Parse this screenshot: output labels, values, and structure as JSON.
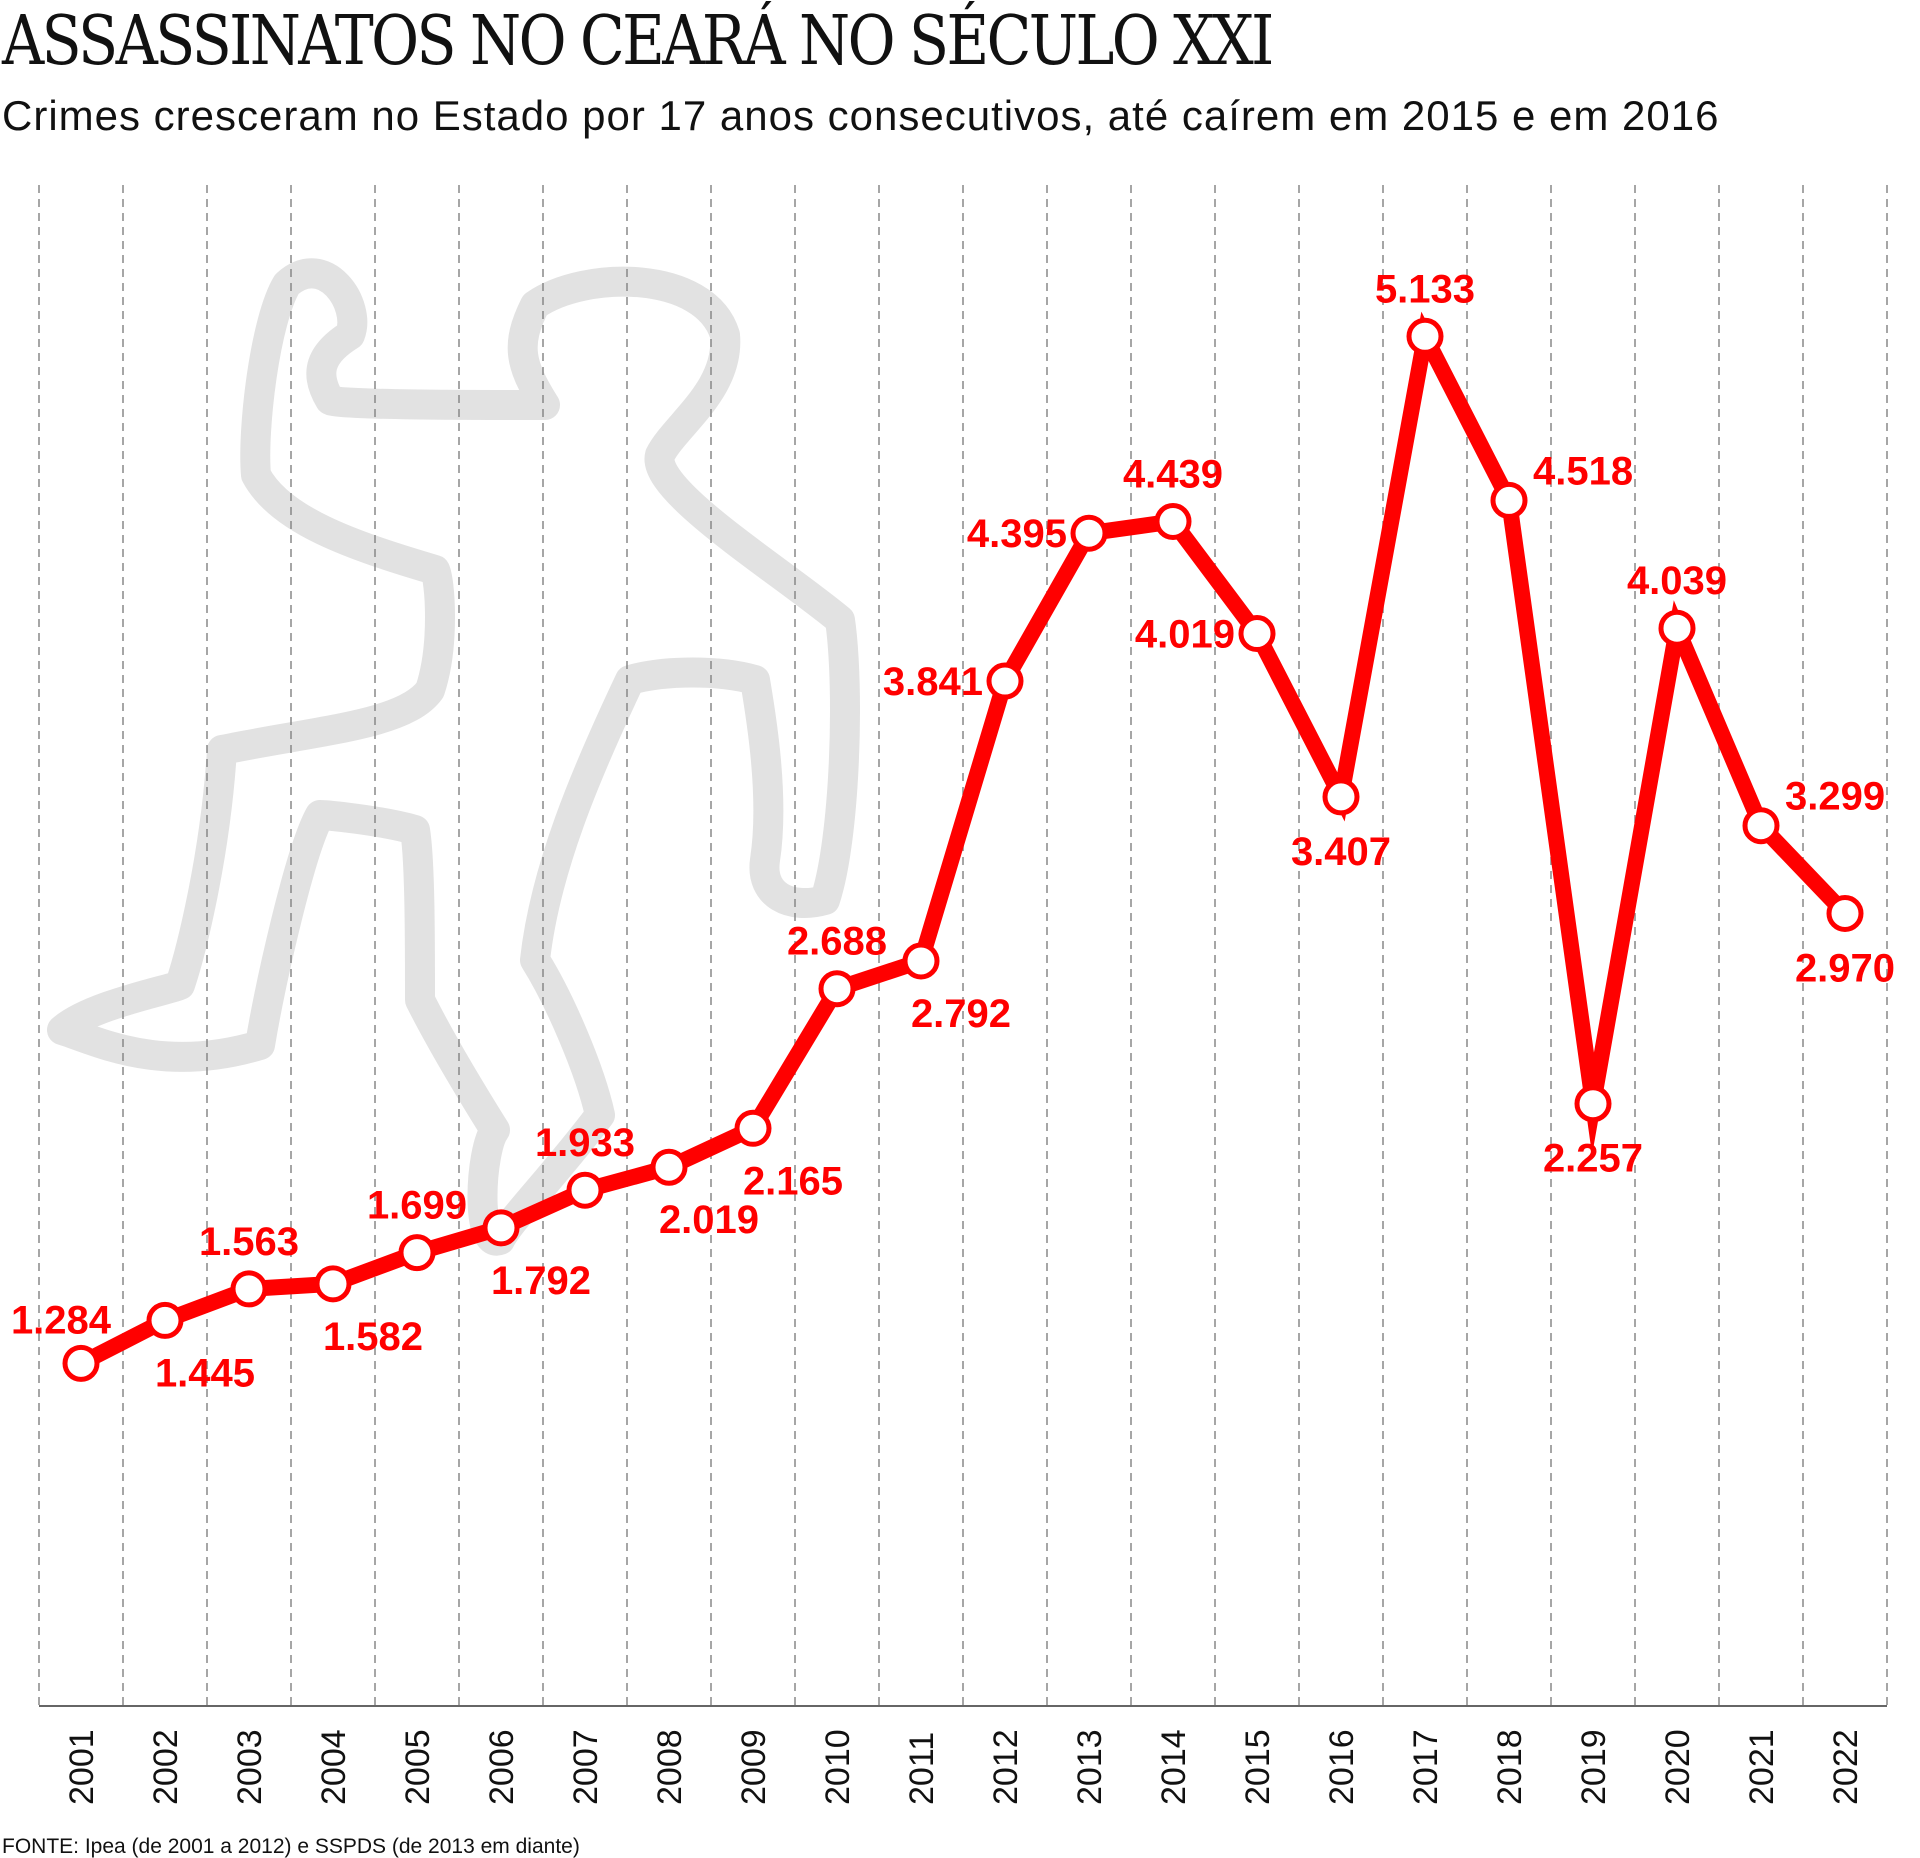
{
  "chart_data": {
    "type": "line",
    "title": "ASSASSINATOS NO CEARÁ NO SÉCULO XXI",
    "subtitle": "Crimes cresceram no Estado por 17 anos consecutivos, até caírem em 2015 e em 2016",
    "source": "FONTE: Ipea (de 2001 a 2012) e SSPDS (de 2013 em diante)",
    "xlabel": "",
    "ylabel": "",
    "grid": "vertical dashed",
    "legend": "none",
    "categories": [
      "2001",
      "2002",
      "2003",
      "2004",
      "2005",
      "2006",
      "2007",
      "2008",
      "2009",
      "2010",
      "2011",
      "2012",
      "2013",
      "2014",
      "2015",
      "2016",
      "2017",
      "2018",
      "2019",
      "2020",
      "2021",
      "2022"
    ],
    "values": [
      1284,
      1445,
      1563,
      1582,
      1699,
      1792,
      1933,
      2019,
      2165,
      2688,
      2792,
      3841,
      4395,
      4439,
      4019,
      3407,
      5133,
      4518,
      2257,
      4039,
      3299,
      2970
    ],
    "value_labels": [
      "1.284",
      "1.445",
      "1.563",
      "1.582",
      "1.699",
      "1.792",
      "1.933",
      "2.019",
      "2.165",
      "2.688",
      "2.792",
      "3.841",
      "4.395",
      "4.439",
      "4.019",
      "3.407",
      "5.133",
      "4.518",
      "2.257",
      "4.039",
      "3.299",
      "2.970"
    ],
    "label_placement": [
      "above-left",
      "below-right",
      "above",
      "below-right",
      "above",
      "below-right",
      "above",
      "below-right",
      "below-right",
      "above",
      "below-right",
      "left",
      "left",
      "above",
      "left",
      "below",
      "above",
      "right",
      "below",
      "above",
      "right",
      "below"
    ],
    "ylim": [
      0,
      5700
    ],
    "colors": {
      "line": "#ff0000",
      "marker_fill": "#ffffff",
      "grid": "#888888",
      "silhouette": "#e2e2e2",
      "text": "#111111"
    }
  }
}
